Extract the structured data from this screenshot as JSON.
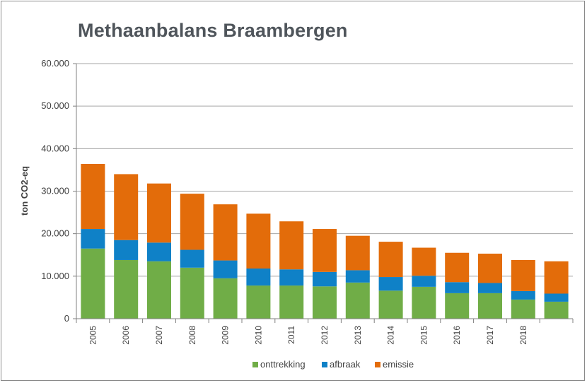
{
  "chart_data": {
    "type": "bar",
    "stacked": true,
    "title": "Methaanbalans Braambergen",
    "ylabel": "ton CO2-eq",
    "xlabel": "",
    "ylim": [
      0,
      60000
    ],
    "yticks": [
      0,
      10000,
      20000,
      30000,
      40000,
      50000,
      60000
    ],
    "ytick_labels": [
      "0",
      "10.000",
      "20.000",
      "30.000",
      "40.000",
      "50.000",
      "60.000"
    ],
    "categories": [
      "2005",
      "2006",
      "2007",
      "2008",
      "2009",
      "2010",
      "2011",
      "2012",
      "2013",
      "2014",
      "2015",
      "2016",
      "2017",
      "2018",
      ""
    ],
    "series": [
      {
        "name": "onttrekking",
        "color": "#70ad47",
        "values": [
          16500,
          13800,
          13500,
          12000,
          9500,
          7800,
          7800,
          7600,
          8500,
          6600,
          7500,
          6000,
          6000,
          4500,
          4000
        ]
      },
      {
        "name": "afbraak",
        "color": "#0f81c7",
        "values": [
          4600,
          4700,
          4400,
          4200,
          4200,
          4000,
          3800,
          3400,
          2900,
          3200,
          2600,
          2600,
          2400,
          2000,
          1900
        ]
      },
      {
        "name": "emissie",
        "color": "#e36c0a",
        "values": [
          15300,
          15500,
          13900,
          13200,
          13200,
          12900,
          11300,
          10100,
          8100,
          8300,
          6600,
          6900,
          6900,
          7300,
          7600
        ]
      }
    ],
    "grid": true,
    "legend": "bottom"
  }
}
